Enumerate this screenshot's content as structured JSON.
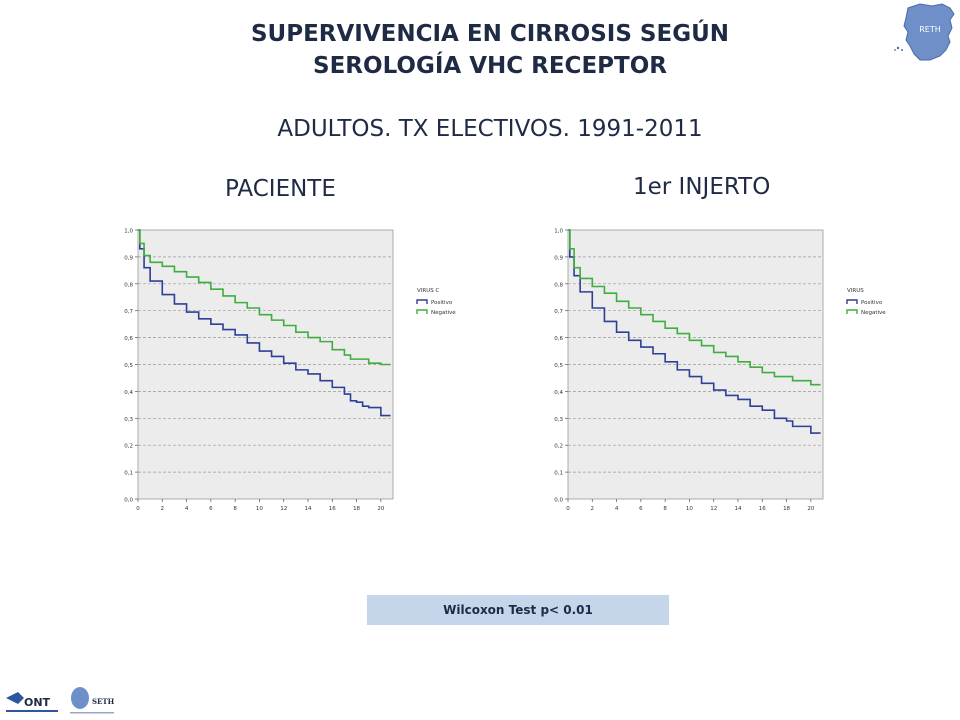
{
  "slide": {
    "title_line1": "SUPERVIVENCIA EN CIRROSIS SEGÚN",
    "title_line2": "SEROLOGÍA VHC RECEPTOR",
    "subtitle": "ADULTOS. TX ELECTIVOS. 1991-2011",
    "panel_left_title": "PACIENTE",
    "panel_right_title": "1er INJERTO",
    "test_label": "Wilcoxon Test  p< 0.01",
    "logo_reth_text": "RETH",
    "footer_logo_ont": "ONT",
    "footer_logo_seth": "SETH"
  },
  "chart_data": [
    {
      "type": "line",
      "title": "PACIENTE",
      "legend_title": "VIRUS C",
      "legend_placement": "right",
      "grid": "horizontal dashed",
      "xlim": [
        0,
        21
      ],
      "ylim": [
        0,
        1
      ],
      "xticks": [
        "0",
        "2",
        "4",
        "6",
        "8",
        "10",
        "12",
        "14",
        "16",
        "18",
        "20"
      ],
      "yticks": [
        "0,0",
        "0,1",
        "0,2",
        "0,3",
        "0,4",
        "0,5",
        "0,6",
        "0,7",
        "0,8",
        "0,9",
        "1,0"
      ],
      "series": [
        {
          "name": "Positivo",
          "color": "#2e3f98",
          "points": [
            [
              0,
              1.0
            ],
            [
              0.15,
              0.93
            ],
            [
              0.5,
              0.86
            ],
            [
              1,
              0.81
            ],
            [
              2,
              0.76
            ],
            [
              3,
              0.725
            ],
            [
              4,
              0.695
            ],
            [
              5,
              0.67
            ],
            [
              6,
              0.65
            ],
            [
              7,
              0.63
            ],
            [
              8,
              0.61
            ],
            [
              9,
              0.58
            ],
            [
              10,
              0.55
            ],
            [
              11,
              0.53
            ],
            [
              12,
              0.505
            ],
            [
              13,
              0.48
            ],
            [
              14,
              0.465
            ],
            [
              15,
              0.44
            ],
            [
              16,
              0.415
            ],
            [
              17,
              0.39
            ],
            [
              17.5,
              0.365
            ],
            [
              18,
              0.36
            ],
            [
              18.5,
              0.345
            ],
            [
              19,
              0.34
            ],
            [
              20,
              0.31
            ],
            [
              20.8,
              0.31
            ]
          ]
        },
        {
          "name": "Negative",
          "color": "#3fae3f",
          "points": [
            [
              0,
              1.0
            ],
            [
              0.15,
              0.95
            ],
            [
              0.5,
              0.905
            ],
            [
              1,
              0.88
            ],
            [
              2,
              0.865
            ],
            [
              3,
              0.845
            ],
            [
              4,
              0.825
            ],
            [
              5,
              0.805
            ],
            [
              6,
              0.78
            ],
            [
              7,
              0.755
            ],
            [
              8,
              0.73
            ],
            [
              9,
              0.71
            ],
            [
              10,
              0.685
            ],
            [
              11,
              0.665
            ],
            [
              12,
              0.645
            ],
            [
              13,
              0.62
            ],
            [
              14,
              0.6
            ],
            [
              15,
              0.585
            ],
            [
              16,
              0.555
            ],
            [
              17,
              0.535
            ],
            [
              17.5,
              0.52
            ],
            [
              18,
              0.52
            ],
            [
              19,
              0.505
            ],
            [
              20,
              0.5
            ],
            [
              20.8,
              0.5
            ]
          ]
        }
      ]
    },
    {
      "type": "line",
      "title": "1er INJERTO",
      "legend_title": "VIRUS",
      "legend_placement": "right",
      "grid": "horizontal dashed",
      "xlim": [
        0,
        21
      ],
      "ylim": [
        0,
        1
      ],
      "xticks": [
        "0",
        "2",
        "4",
        "6",
        "8",
        "10",
        "12",
        "14",
        "16",
        "18",
        "20"
      ],
      "yticks": [
        "0,0",
        "0,1",
        "0,2",
        "0,3",
        "0,4",
        "0,5",
        "0,6",
        "0,7",
        "0,8",
        "0,9",
        "1,0"
      ],
      "series": [
        {
          "name": "Positivo",
          "color": "#2e3f98",
          "points": [
            [
              0,
              1.0
            ],
            [
              0.15,
              0.9
            ],
            [
              0.5,
              0.83
            ],
            [
              1,
              0.77
            ],
            [
              2,
              0.71
            ],
            [
              3,
              0.66
            ],
            [
              4,
              0.62
            ],
            [
              5,
              0.59
            ],
            [
              6,
              0.565
            ],
            [
              7,
              0.54
            ],
            [
              8,
              0.51
            ],
            [
              9,
              0.48
            ],
            [
              10,
              0.455
            ],
            [
              11,
              0.43
            ],
            [
              12,
              0.405
            ],
            [
              13,
              0.385
            ],
            [
              14,
              0.37
            ],
            [
              15,
              0.345
            ],
            [
              16,
              0.33
            ],
            [
              17,
              0.3
            ],
            [
              18,
              0.29
            ],
            [
              18.5,
              0.27
            ],
            [
              19,
              0.27
            ],
            [
              20,
              0.245
            ],
            [
              20.8,
              0.245
            ]
          ]
        },
        {
          "name": "Negative",
          "color": "#3fae3f",
          "points": [
            [
              0,
              1.0
            ],
            [
              0.15,
              0.93
            ],
            [
              0.5,
              0.86
            ],
            [
              1,
              0.82
            ],
            [
              2,
              0.79
            ],
            [
              3,
              0.765
            ],
            [
              4,
              0.735
            ],
            [
              5,
              0.71
            ],
            [
              6,
              0.685
            ],
            [
              7,
              0.66
            ],
            [
              8,
              0.635
            ],
            [
              9,
              0.615
            ],
            [
              10,
              0.59
            ],
            [
              11,
              0.57
            ],
            [
              12,
              0.545
            ],
            [
              13,
              0.53
            ],
            [
              14,
              0.51
            ],
            [
              15,
              0.49
            ],
            [
              16,
              0.47
            ],
            [
              17,
              0.455
            ],
            [
              18,
              0.455
            ],
            [
              18.5,
              0.44
            ],
            [
              19,
              0.44
            ],
            [
              20,
              0.425
            ],
            [
              20.8,
              0.425
            ]
          ]
        }
      ]
    }
  ]
}
